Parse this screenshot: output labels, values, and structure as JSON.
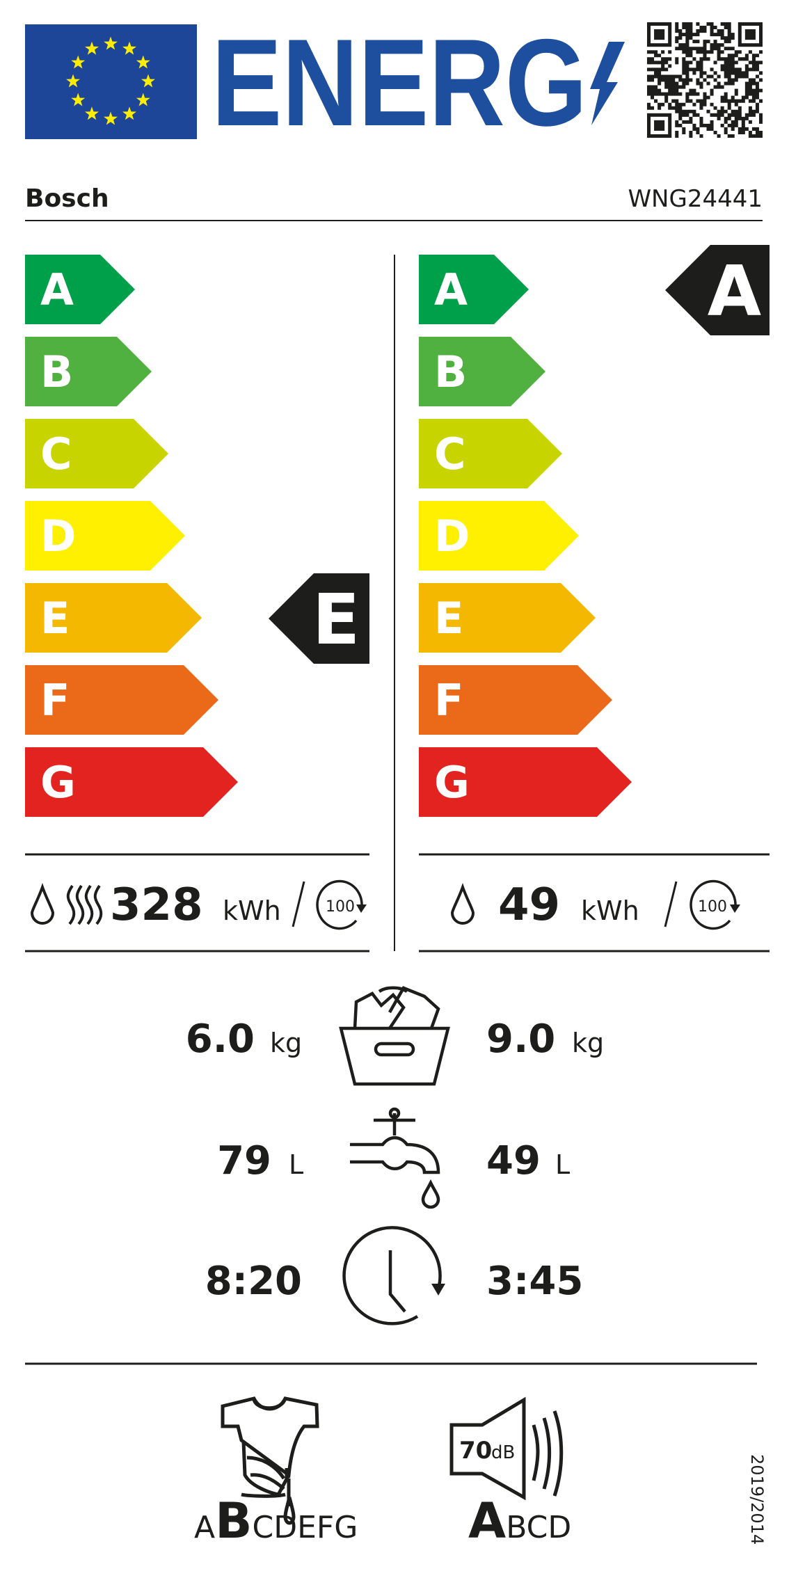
{
  "header": {
    "title": "ENERG",
    "brand": "Bosch",
    "model": "WNG24441",
    "flag_color": "#1d4698",
    "title_color": "#1d4f9e",
    "star_color": "#ffed00"
  },
  "scale": {
    "classes": [
      "A",
      "B",
      "C",
      "D",
      "E",
      "F",
      "G"
    ],
    "colors": [
      "#00a04a",
      "#50b040",
      "#c8d400",
      "#fff000",
      "#f5b800",
      "#eb6a1a",
      "#e3231f"
    ]
  },
  "wash_dry": {
    "class": "E",
    "energy_value": "328",
    "energy_unit": "kWh",
    "cycles": "100",
    "icons": [
      "drop-icon",
      "heat-icon",
      "cycles-100-icon"
    ]
  },
  "wash": {
    "class": "A",
    "energy_value": "49",
    "energy_unit": "kWh",
    "cycles": "100",
    "icons": [
      "drop-icon",
      "cycles-100-icon"
    ]
  },
  "specs": {
    "capacity": {
      "wash_dry": "6.0",
      "wash": "9.0",
      "unit": "kg",
      "icon": "laundry-basket-icon"
    },
    "water": {
      "wash_dry": "79",
      "wash": "49",
      "unit": "L",
      "icon": "tap-icon"
    },
    "duration": {
      "wash_dry": "8:20",
      "wash": "3:45",
      "icon": "clock-icon"
    }
  },
  "spin": {
    "scale": [
      "A",
      "B",
      "C",
      "D",
      "E",
      "F",
      "G"
    ],
    "selected": "B",
    "icon": "spin-drying-shirt-icon"
  },
  "noise": {
    "value": "70",
    "unit": "dB",
    "scale": [
      "A",
      "B",
      "C",
      "D"
    ],
    "selected": "A",
    "icon": "speaker-icon"
  },
  "regulation": "2019/2014"
}
